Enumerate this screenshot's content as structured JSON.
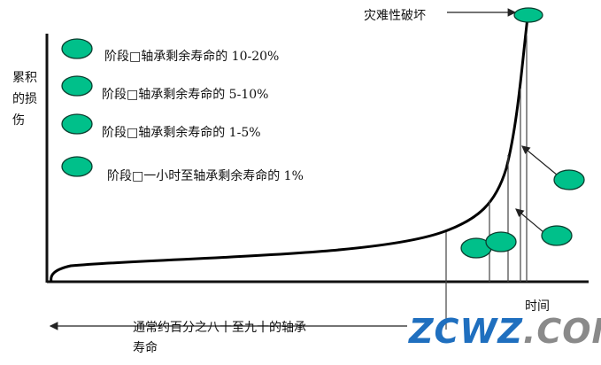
{
  "y_axis_label": "累积的损伤",
  "x_axis_label": "时间",
  "catastrophic_label": "灾难性破坏",
  "legend": [
    "阶段□轴承剩余寿命的 10-20%",
    "阶段□轴承剩余寿命的 5-10%",
    "阶段□轴承剩余寿命的 1-5%",
    "阶段□一小时至轴承剩余寿命的 1%"
  ],
  "bottom_label_line1": "通常约百分之八十至九十的轴承",
  "bottom_label_line2": "寿命",
  "watermark": {
    "part1": "ZCWZ",
    "part2": ".COM"
  },
  "colors": {
    "stage_marker": "#00c08a",
    "watermark_blue": "#1f6fbf",
    "watermark_grey": "#8a8a8a"
  }
}
